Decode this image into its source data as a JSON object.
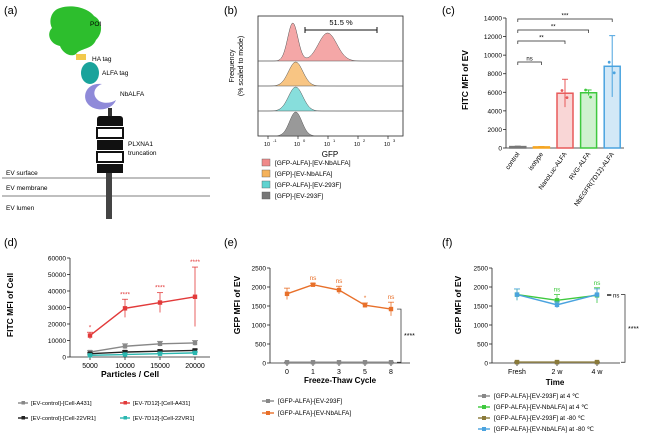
{
  "panel_labels": [
    "(a)",
    "(b)",
    "(c)",
    "(d)",
    "(e)",
    "(f)"
  ],
  "panel_a": {
    "labels": {
      "poi": "POI",
      "ha_tag": "HA tag",
      "alfa_tag": "ALFA tag",
      "nbalfa": "NbALFA",
      "plxna1": "PLXNA1",
      "truncation": "truncation",
      "ev_surface": "EV surface",
      "ev_membrane": "EV membrane",
      "ev_lumen": "EV lumen"
    },
    "colors": {
      "poi": "#2dbe2d",
      "ha": "#f2c94c",
      "alfa": "#1aa39b",
      "nb": "#8f8ad9",
      "domain": "#111111"
    }
  },
  "chart_data": [
    {
      "id": "b",
      "type": "histogram",
      "xlabel": "GFP",
      "ylabel_lines": [
        "Frequency",
        "(% scaled to mode)"
      ],
      "xtick_labels": [
        "10",
        "10",
        "10",
        "10",
        "10"
      ],
      "xtick_exponents": [
        "-1",
        "0",
        "1",
        "2",
        "3"
      ],
      "gate_label": "51.5 %",
      "legend": [
        {
          "label": "[GFP-ALFA]-[EV-NbALFA]",
          "color": "#f08a8a"
        },
        {
          "label": "[GFP]-[EV-NbALFA]",
          "color": "#f5b25a"
        },
        {
          "label": "[GFP-ALFA]-[EV-293F]",
          "color": "#5fd3d0"
        },
        {
          "label": "[GFP]-[EV-293F]",
          "color": "#777777"
        }
      ]
    },
    {
      "id": "c",
      "type": "bar",
      "ylabel": "FITC MFI of EV",
      "ylim": [
        0,
        14000
      ],
      "yticks": [
        "0",
        "2000",
        "4000",
        "6000",
        "8000",
        "10000",
        "12000",
        "14000"
      ],
      "categories": [
        "control",
        "isotype",
        "NanoLuc-ALFA",
        "RVG-ALFA",
        "NbEGFR(7D12)-ALFA"
      ],
      "values": [
        150,
        120,
        5900,
        5950,
        8800
      ],
      "errors": [
        50,
        40,
        1500,
        300,
        3300
      ],
      "colors": [
        "#777777",
        "#f5a623",
        "#e85a5a",
        "#3ec93e",
        "#4aa3df"
      ],
      "significance": [
        {
          "from": 0,
          "to": 1,
          "label": "ns"
        },
        {
          "from": 0,
          "to": 2,
          "label": "**"
        },
        {
          "from": 0,
          "to": 3,
          "label": "**"
        },
        {
          "from": 0,
          "to": 4,
          "label": "***"
        }
      ]
    },
    {
      "id": "d",
      "type": "line",
      "xlabel": "Particles / Cell",
      "ylabel": "FITC MFI of Cell",
      "x": [
        5000,
        10000,
        15000,
        20000
      ],
      "ylim": [
        0,
        60000
      ],
      "yticks": [
        "0",
        "10000",
        "20000",
        "30000",
        "40000",
        "50000",
        "60000"
      ],
      "series": [
        {
          "name": "[EV-control]-[Cell-A431]",
          "values": [
            3000,
            6500,
            8000,
            8500
          ],
          "errors": [
            800,
            1500,
            1500,
            1500
          ],
          "color": "#888888"
        },
        {
          "name": "[EV-7D12]-[Cell-A431]",
          "values": [
            13000,
            29500,
            33000,
            36500
          ],
          "errors": [
            2000,
            5500,
            6000,
            18000
          ],
          "color": "#e23a3a"
        },
        {
          "name": "[EV-control]-[Cell-22VR1]",
          "values": [
            2000,
            3000,
            3500,
            4000
          ],
          "errors": [
            500,
            800,
            800,
            800
          ],
          "color": "#222222"
        },
        {
          "name": "[EV-7D12]-[Cell-22VR1]",
          "values": [
            1000,
            1500,
            2000,
            2500
          ],
          "errors": [
            300,
            400,
            400,
            500
          ],
          "color": "#2ab7b0"
        }
      ],
      "annotations": [
        "*",
        "****",
        "****",
        "****"
      ]
    },
    {
      "id": "e",
      "type": "line",
      "xlabel": "Freeze-Thaw Cycle",
      "ylabel": "GFP MFI of EV",
      "categories": [
        "0",
        "1",
        "3",
        "5",
        "8"
      ],
      "ylim": [
        0,
        2500
      ],
      "yticks": [
        "0",
        "500",
        "1000",
        "1500",
        "2000",
        "2500"
      ],
      "series": [
        {
          "name": "[GFP-ALFA]-[EV-293F]",
          "values": [
            20,
            20,
            20,
            20,
            20
          ],
          "errors": [
            5,
            5,
            5,
            5,
            5
          ],
          "color": "#888888"
        },
        {
          "name": "[GFP-ALFA]-[EV-NbALFA]",
          "values": [
            1820,
            2060,
            1920,
            1520,
            1420
          ],
          "errors": [
            150,
            40,
            100,
            60,
            180
          ],
          "color": "#e8702a"
        }
      ],
      "annotations": [
        "",
        "ns",
        "ns",
        "*",
        "ns"
      ],
      "bracket_label": "****"
    },
    {
      "id": "f",
      "type": "line",
      "xlabel": "Time",
      "ylabel": "GFP MFI of EV",
      "categories": [
        "Fresh",
        "2 w",
        "4 w"
      ],
      "ylim": [
        0,
        2500
      ],
      "yticks": [
        "0",
        "500",
        "1000",
        "1500",
        "2000",
        "2500"
      ],
      "series": [
        {
          "name": "[GFP-ALFA]-[EV-293F] at 4 ℃",
          "values": [
            20,
            20,
            20
          ],
          "errors": [
            5,
            5,
            5
          ],
          "color": "#888888"
        },
        {
          "name": "[GFP-ALFA]-[EV-NbALFA] at 4 ℃",
          "values": [
            1800,
            1650,
            1780
          ],
          "errors": [
            150,
            150,
            200
          ],
          "color": "#3ec93e"
        },
        {
          "name": "[GFP-ALFA]-[EV-293F] at -80 ℃",
          "values": [
            25,
            25,
            25
          ],
          "errors": [
            5,
            5,
            5
          ],
          "color": "#8a7a3a"
        },
        {
          "name": "[GFP-ALFA]-[EV-NbALFA] at -80 ℃",
          "values": [
            1800,
            1530,
            1800
          ],
          "errors": [
            150,
            80,
            150
          ],
          "color": "#4aa3df"
        }
      ],
      "annotations": [
        "",
        "ns",
        "ns"
      ],
      "bracket_labels": [
        "ns",
        "****"
      ]
    }
  ]
}
